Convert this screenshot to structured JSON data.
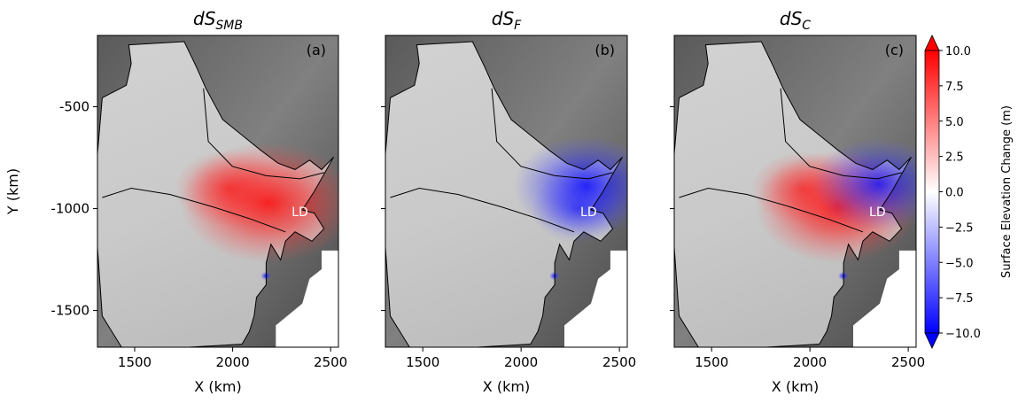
{
  "chart_data": [
    {
      "type": "heatmap",
      "title": "dS_SMB",
      "title_main": "dS",
      "title_sub": "SMB",
      "panel_tag": "(a)",
      "location_label": "LD",
      "xlabel": "X (km)",
      "ylabel": "Y (km)",
      "xlim": [
        1310,
        2540
      ],
      "ylim": [
        -1680,
        -150
      ],
      "xticks": [
        1500,
        2000,
        2500
      ],
      "xtick_labels": [
        "1500",
        "2000",
        "2500"
      ],
      "yticks": [
        -500,
        -1000,
        -1500
      ],
      "ytick_labels": [
        "-500",
        "-1000",
        "-1500"
      ],
      "anomalies": [
        {
          "x": 2180,
          "y": -970,
          "value": 8.5,
          "sign": "positive"
        },
        {
          "x": 1980,
          "y": -900,
          "value": 3.0,
          "sign": "positive"
        },
        {
          "x": 2170,
          "y": -1330,
          "value": -10.0,
          "sign": "negative"
        }
      ]
    },
    {
      "type": "heatmap",
      "title": "dS_F",
      "title_main": "dS",
      "title_sub": "F",
      "panel_tag": "(b)",
      "location_label": "LD",
      "xlabel": "X (km)",
      "ylabel": "",
      "xlim": [
        1310,
        2540
      ],
      "ylim": [
        -1680,
        -150
      ],
      "xticks": [
        1500,
        2000,
        2500
      ],
      "xtick_labels": [
        "1500",
        "2000",
        "2500"
      ],
      "yticks": [
        -500,
        -1000,
        -1500
      ],
      "ytick_labels": [],
      "anomalies": [
        {
          "x": 2330,
          "y": -890,
          "value": -6.0,
          "sign": "negative"
        },
        {
          "x": 2290,
          "y": -1000,
          "value": -2.0,
          "sign": "negative"
        },
        {
          "x": 2170,
          "y": -1330,
          "value": -8.0,
          "sign": "negative"
        }
      ]
    },
    {
      "type": "heatmap",
      "title": "dS_C",
      "title_main": "dS",
      "title_sub": "C",
      "panel_tag": "(c)",
      "location_label": "LD",
      "xlabel": "X (km)",
      "ylabel": "",
      "xlim": [
        1310,
        2540
      ],
      "ylim": [
        -1680,
        -150
      ],
      "xticks": [
        1500,
        2000,
        2500
      ],
      "xtick_labels": [
        "1500",
        "2000",
        "2500"
      ],
      "yticks": [
        -500,
        -1000,
        -1500
      ],
      "ytick_labels": [],
      "anomalies": [
        {
          "x": 2140,
          "y": -990,
          "value": 7.5,
          "sign": "positive"
        },
        {
          "x": 1960,
          "y": -900,
          "value": 2.5,
          "sign": "positive"
        },
        {
          "x": 2350,
          "y": -880,
          "value": -5.0,
          "sign": "negative"
        },
        {
          "x": 2170,
          "y": -1330,
          "value": -10.0,
          "sign": "negative"
        }
      ]
    }
  ],
  "colorbar": {
    "label": "Surface Elevation Change (m)",
    "min": -10.0,
    "max": 10.0,
    "colormap": "bwr",
    "extend": "both",
    "ticks": [
      10.0,
      7.5,
      5.0,
      2.5,
      0.0,
      -2.5,
      -5.0,
      -7.5,
      -10.0
    ],
    "tick_labels": [
      "10.0",
      "7.5",
      "5.0",
      "2.5",
      "0.0",
      "−2.5",
      "−5.0",
      "−7.5",
      "−10.0"
    ],
    "colors": {
      "low": "#0000ff",
      "mid": "#ffffff",
      "high": "#ff0000"
    }
  }
}
